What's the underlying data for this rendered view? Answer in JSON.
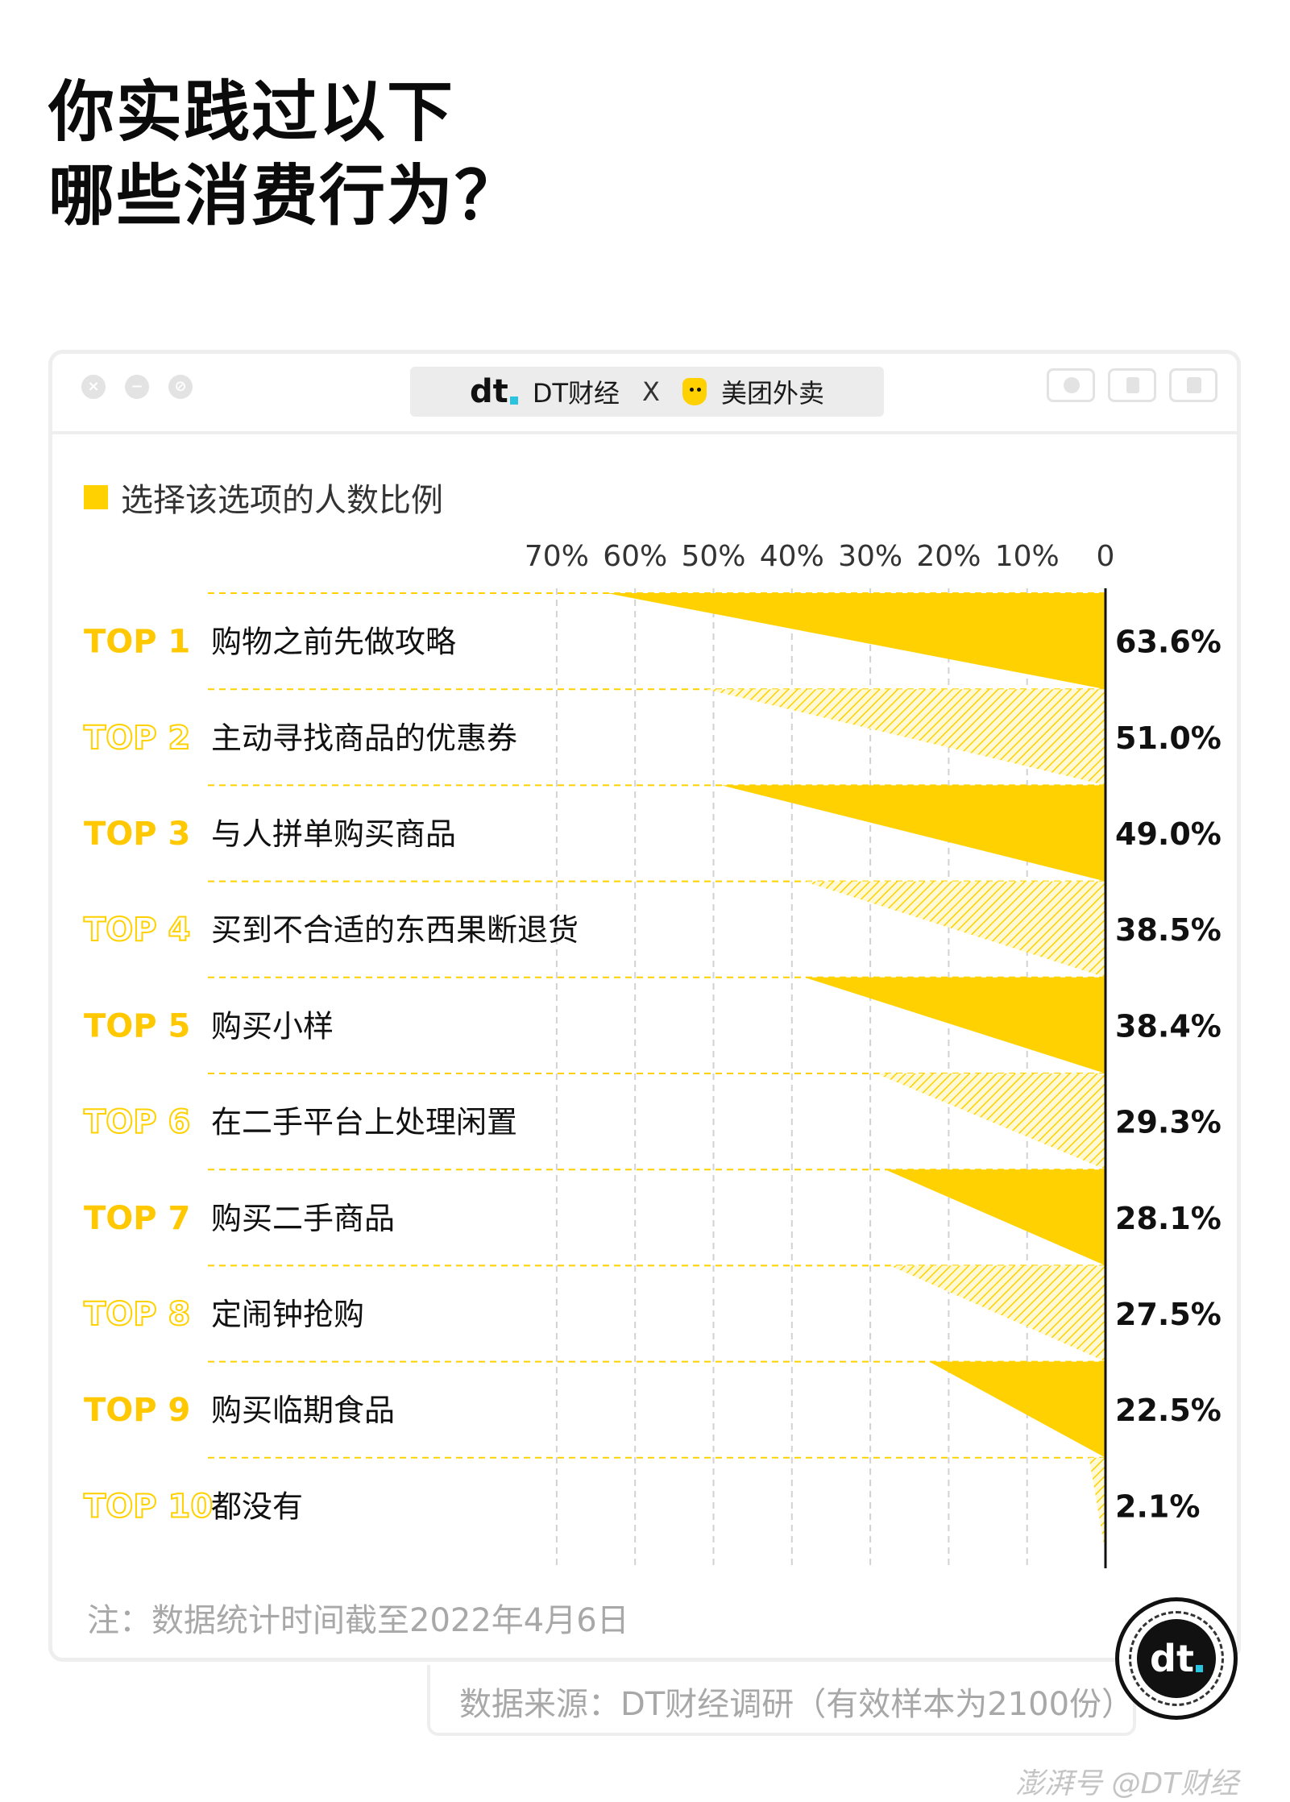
{
  "title": {
    "line1": "你实践过以下",
    "line2": "哪些消费行为？"
  },
  "header": {
    "dt_logo": "dt",
    "dt_name": "DT财经",
    "separator": "X",
    "partner_name": "美团外卖"
  },
  "legend": {
    "label": "选择该选项的人数比例",
    "color": "#ffd100"
  },
  "chart_data": {
    "type": "bar",
    "orientation": "horizontal-triangle",
    "axis_reversed": true,
    "xlim": [
      0,
      70
    ],
    "tick_labels": [
      "70%",
      "60%",
      "50%",
      "40%",
      "30%",
      "20%",
      "10%",
      "0"
    ],
    "tick_values": [
      70,
      60,
      50,
      40,
      30,
      20,
      10,
      0
    ],
    "ranks": [
      "TOP 1",
      "TOP 2",
      "TOP 3",
      "TOP 4",
      "TOP 5",
      "TOP 6",
      "TOP 7",
      "TOP 8",
      "TOP 9",
      "TOP 10"
    ],
    "categories": [
      "购物之前先做攻略",
      "主动寻找商品的优惠券",
      "与人拼单购买商品",
      "买到不合适的东西果断退货",
      "购买小样",
      "在二手平台上处理闲置",
      "购买二手商品",
      "定闹钟抢购",
      "购买临期食品",
      "都没有"
    ],
    "values": [
      63.6,
      51.0,
      49.0,
      38.5,
      38.4,
      29.3,
      28.1,
      27.5,
      22.5,
      2.1
    ],
    "value_labels": [
      "63.6%",
      "51.0%",
      "49.0%",
      "38.5%",
      "38.4%",
      "29.3%",
      "28.1%",
      "27.5%",
      "22.5%",
      "2.1%"
    ],
    "styles": [
      "solid",
      "hatched",
      "solid",
      "hatched",
      "solid",
      "hatched",
      "solid",
      "hatched",
      "solid",
      "hatched"
    ],
    "grid": true
  },
  "note": "注：数据统计时间截至2022年4月6日",
  "source": "数据来源：DT财经调研（有效样本为2100份）",
  "badge": {
    "logo": "dt"
  },
  "watermark": "澎湃号 @DT财经"
}
